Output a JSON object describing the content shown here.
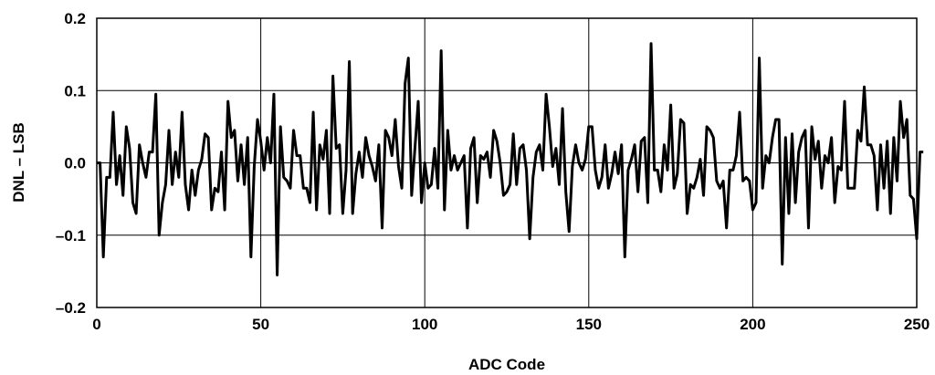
{
  "chart_data": {
    "type": "line",
    "xlabel": "ADC Code",
    "ylabel": "DNL – LSB",
    "xlim": [
      0,
      250
    ],
    "ylim": [
      -0.2,
      0.2
    ],
    "grid": true,
    "x_ticks": [
      0,
      50,
      100,
      150,
      200,
      250
    ],
    "x_tick_labels": [
      "0",
      "50",
      "100",
      "150",
      "200",
      "250"
    ],
    "y_ticks": [
      -0.2,
      -0.1,
      0.0,
      0.1,
      0.2
    ],
    "y_tick_labels": [
      "–0.2",
      "–0.1",
      "0.0",
      "0.1",
      "0.2"
    ],
    "series": [
      {
        "x_start": 0,
        "x_step": 1,
        "values": [
          0.0,
          0.0,
          -0.13,
          -0.02,
          -0.02,
          0.07,
          -0.03,
          0.01,
          -0.045,
          0.05,
          0.02,
          -0.055,
          -0.07,
          0.025,
          0.0,
          -0.02,
          0.015,
          0.015,
          0.095,
          -0.1,
          -0.055,
          -0.03,
          0.045,
          -0.03,
          0.015,
          -0.02,
          0.07,
          -0.03,
          -0.065,
          -0.01,
          -0.045,
          -0.01,
          0.005,
          0.04,
          0.035,
          -0.065,
          -0.035,
          -0.04,
          0.015,
          -0.065,
          0.085,
          0.035,
          0.045,
          -0.025,
          0.025,
          -0.03,
          0.035,
          -0.13,
          -0.005,
          0.06,
          0.03,
          -0.01,
          0.035,
          0.0,
          0.095,
          -0.155,
          0.05,
          -0.02,
          -0.025,
          -0.035,
          0.045,
          0.01,
          0.01,
          -0.035,
          -0.035,
          -0.055,
          0.07,
          -0.065,
          0.025,
          0.005,
          0.045,
          -0.07,
          0.12,
          0.02,
          0.025,
          -0.07,
          -0.01,
          0.14,
          -0.07,
          -0.015,
          0.015,
          -0.02,
          0.035,
          0.01,
          -0.005,
          -0.025,
          0.025,
          -0.09,
          0.045,
          0.035,
          0.01,
          0.06,
          -0.005,
          -0.035,
          0.11,
          0.145,
          -0.045,
          0.02,
          0.085,
          -0.055,
          0.0,
          -0.035,
          -0.03,
          0.02,
          -0.035,
          0.155,
          -0.065,
          0.045,
          -0.01,
          0.01,
          -0.01,
          0.0,
          0.01,
          -0.09,
          0.02,
          0.035,
          -0.055,
          0.01,
          0.005,
          0.015,
          -0.02,
          0.045,
          0.03,
          0.0,
          -0.045,
          -0.04,
          -0.03,
          0.04,
          -0.03,
          0.02,
          0.025,
          -0.01,
          -0.105,
          -0.02,
          0.015,
          0.025,
          -0.01,
          0.095,
          0.05,
          -0.005,
          0.02,
          -0.03,
          0.075,
          -0.04,
          -0.095,
          -0.005,
          0.025,
          0.0,
          -0.01,
          0.005,
          0.05,
          0.05,
          -0.01,
          -0.035,
          -0.02,
          0.025,
          -0.035,
          -0.015,
          0.015,
          -0.015,
          0.025,
          -0.13,
          -0.01,
          0.005,
          0.025,
          -0.04,
          0.03,
          0.035,
          -0.055,
          0.165,
          -0.01,
          -0.01,
          -0.04,
          0.025,
          -0.01,
          0.08,
          -0.035,
          -0.015,
          0.06,
          0.055,
          -0.07,
          -0.03,
          -0.035,
          -0.02,
          0.005,
          -0.045,
          0.05,
          0.045,
          0.035,
          -0.025,
          -0.035,
          -0.025,
          -0.09,
          -0.01,
          -0.01,
          0.01,
          0.07,
          -0.025,
          -0.02,
          -0.025,
          -0.065,
          -0.055,
          0.145,
          -0.035,
          0.01,
          0.0,
          0.035,
          0.06,
          0.06,
          -0.14,
          0.035,
          -0.07,
          0.04,
          -0.055,
          0.015,
          0.035,
          0.045,
          -0.09,
          0.05,
          0.005,
          0.03,
          -0.035,
          0.01,
          0.0,
          0.035,
          -0.055,
          -0.005,
          -0.01,
          0.085,
          -0.035,
          -0.035,
          -0.035,
          0.045,
          0.03,
          0.105,
          0.025,
          0.025,
          0.01,
          -0.065,
          0.025,
          -0.035,
          0.03,
          -0.07,
          0.035,
          -0.025,
          0.085,
          0.035,
          0.06,
          -0.045,
          -0.05,
          -0.105,
          0.015,
          0.015
        ]
      }
    ]
  }
}
